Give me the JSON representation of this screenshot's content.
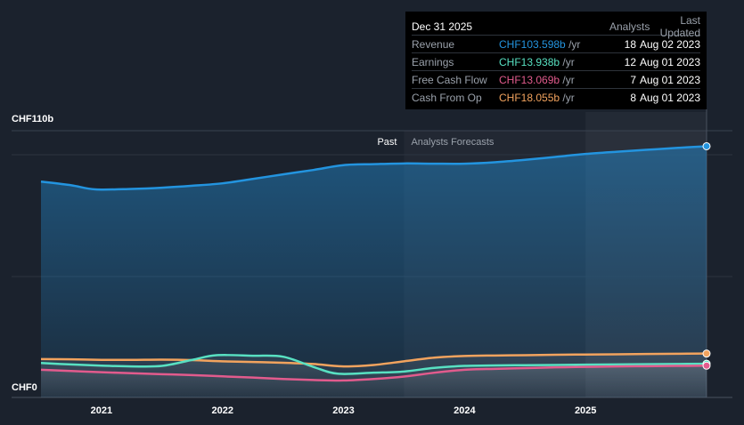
{
  "colors": {
    "background": "#1b222d",
    "revenue": "#2394df",
    "earnings": "#58e1c2",
    "free_cash_flow": "#e25b8d",
    "cash_from_op": "#f2a35e"
  },
  "tooltip": {
    "date": "Dec 31 2025",
    "col_analysts": "Analysts",
    "col_updated": "Last Updated",
    "rows": [
      {
        "name": "Revenue",
        "value": "CHF103.598b",
        "unit": "/yr",
        "analysts": "18",
        "updated": "Aug 02 2023"
      },
      {
        "name": "Earnings",
        "value": "CHF13.938b",
        "unit": "/yr",
        "analysts": "12",
        "updated": "Aug 01 2023"
      },
      {
        "name": "Free Cash Flow",
        "value": "CHF13.069b",
        "unit": "/yr",
        "analysts": "7",
        "updated": "Aug 01 2023"
      },
      {
        "name": "Cash From Op",
        "value": "CHF18.055b",
        "unit": "/yr",
        "analysts": "8",
        "updated": "Aug 01 2023"
      }
    ]
  },
  "chart_data": {
    "type": "area",
    "xlim": [
      2020.5,
      2026.0
    ],
    "ylim": [
      0,
      110
    ],
    "y_top_label": "CHF110b",
    "y_bottom_label": "CHF0",
    "x_ticks": [
      "2021",
      "2022",
      "2023",
      "2024",
      "2025"
    ],
    "past_label": "Past",
    "forecast_label": "Analysts Forecasts",
    "forecast_start": 2023.5,
    "series": [
      {
        "name": "Revenue",
        "color": "#2394df",
        "x": [
          2020.5,
          2020.75,
          2020.95,
          2021.25,
          2021.5,
          2021.75,
          2022.0,
          2022.25,
          2022.5,
          2022.75,
          2023.0,
          2023.25,
          2023.5,
          2023.75,
          2024.0,
          2024.25,
          2024.5,
          2024.75,
          2025.0,
          2025.25,
          2025.5,
          2025.75,
          2026.0
        ],
        "y": [
          89.0,
          87.5,
          85.8,
          86.0,
          86.5,
          87.3,
          88.3,
          90.1,
          92.0,
          93.8,
          95.8,
          96.2,
          96.5,
          96.4,
          96.4,
          97.0,
          98.0,
          99.2,
          100.4,
          101.3,
          102.1,
          102.9,
          103.6
        ]
      },
      {
        "name": "Cash From Op",
        "color": "#f2a35e",
        "x": [
          2020.5,
          2020.75,
          2021.0,
          2021.25,
          2021.5,
          2021.75,
          2022.0,
          2022.25,
          2022.5,
          2022.75,
          2023.0,
          2023.25,
          2023.5,
          2023.75,
          2024.0,
          2024.25,
          2024.5,
          2024.75,
          2025.0,
          2025.25,
          2025.5,
          2025.75,
          2026.0
        ],
        "y": [
          15.8,
          15.7,
          15.5,
          15.5,
          15.6,
          15.4,
          14.9,
          14.6,
          14.3,
          13.8,
          12.8,
          13.4,
          14.9,
          16.4,
          17.1,
          17.3,
          17.4,
          17.6,
          17.7,
          17.8,
          17.9,
          18.0,
          18.1
        ]
      },
      {
        "name": "Earnings",
        "color": "#58e1c2",
        "x": [
          2020.5,
          2020.75,
          2021.0,
          2021.25,
          2021.5,
          2021.75,
          2021.95,
          2022.25,
          2022.5,
          2022.75,
          2022.95,
          2023.25,
          2023.5,
          2023.75,
          2024.0,
          2024.25,
          2024.5,
          2024.75,
          2025.0,
          2025.25,
          2025.5,
          2025.75,
          2026.0
        ],
        "y": [
          14.2,
          13.6,
          13.1,
          12.8,
          13.0,
          15.5,
          17.4,
          17.2,
          16.8,
          12.6,
          9.8,
          10.2,
          10.7,
          12.2,
          13.0,
          13.2,
          13.3,
          13.4,
          13.5,
          13.6,
          13.7,
          13.8,
          13.9
        ]
      },
      {
        "name": "Free Cash Flow",
        "color": "#e25b8d",
        "x": [
          2020.5,
          2020.75,
          2021.0,
          2021.25,
          2021.5,
          2021.75,
          2022.0,
          2022.25,
          2022.5,
          2022.75,
          2023.0,
          2023.25,
          2023.5,
          2023.75,
          2024.0,
          2024.25,
          2024.5,
          2024.75,
          2025.0,
          2025.25,
          2025.5,
          2025.75,
          2026.0
        ],
        "y": [
          11.4,
          10.9,
          10.4,
          10.0,
          9.6,
          9.2,
          8.7,
          8.2,
          7.6,
          7.2,
          7.0,
          7.6,
          8.6,
          10.2,
          11.4,
          11.8,
          12.1,
          12.4,
          12.6,
          12.8,
          12.9,
          13.0,
          13.1
        ]
      }
    ]
  }
}
